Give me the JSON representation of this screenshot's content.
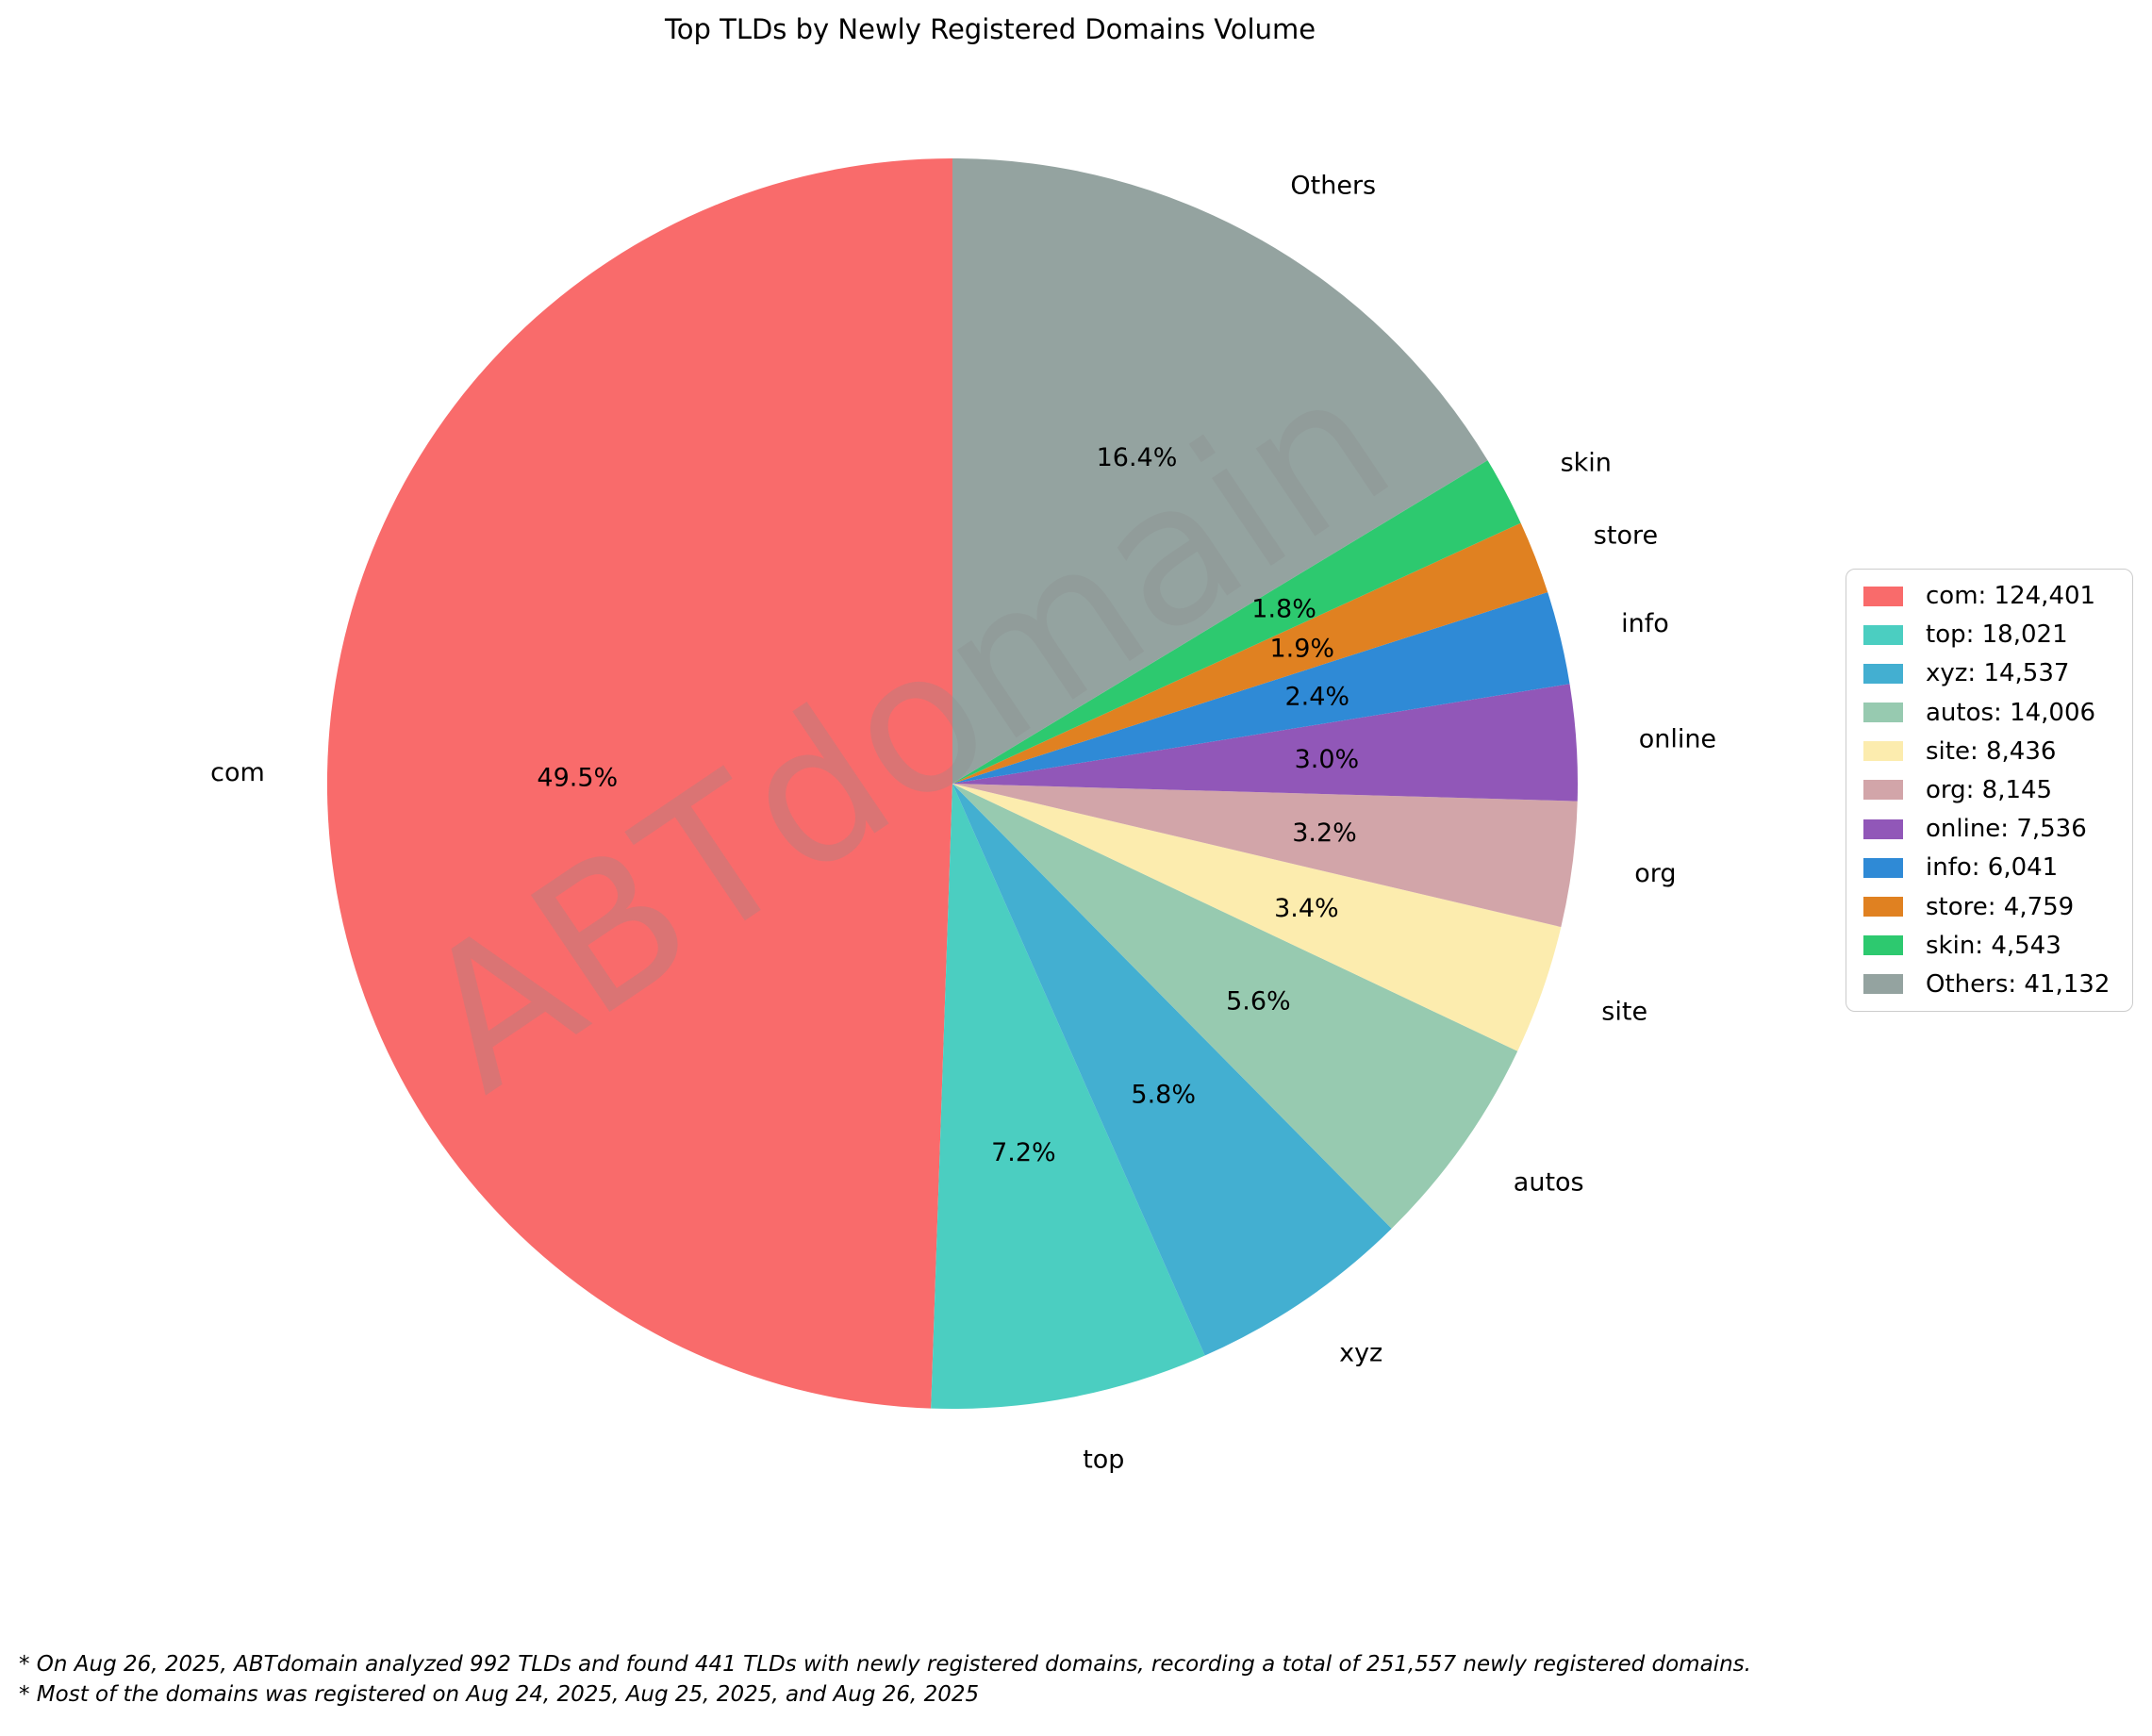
{
  "title": "Top TLDs by Newly Registered Domains Volume",
  "watermark": "ABTdomain",
  "footnotes": [
    "* On Aug 26, 2025, ABTdomain analyzed 992 TLDs and found 441 TLDs with newly registered domains, recording a total of 251,557 newly registered domains.",
    "* Most of the domains was registered on Aug 24, 2025, Aug 25, 2025, and Aug 26, 2025"
  ],
  "chart_data": {
    "type": "pie",
    "title": "Top TLDs by Newly Registered Domains Volume",
    "total": 251557,
    "start_angle": 90,
    "counterclock": true,
    "legend_position": "right",
    "watermark_color": "#8c8c8c",
    "series": [
      {
        "label": "com",
        "value": 124401,
        "value_display": "124,401",
        "pct_label": "49.5%",
        "color": "#f96b6b"
      },
      {
        "label": "top",
        "value": 18021,
        "value_display": "18,021",
        "pct_label": "7.2%",
        "color": "#4bcec1"
      },
      {
        "label": "xyz",
        "value": 14537,
        "value_display": "14,537",
        "pct_label": "5.8%",
        "color": "#43afd1"
      },
      {
        "label": "autos",
        "value": 14006,
        "value_display": "14,006",
        "pct_label": "5.6%",
        "color": "#97cab0"
      },
      {
        "label": "site",
        "value": 8436,
        "value_display": "8,436",
        "pct_label": "3.4%",
        "color": "#fcecae"
      },
      {
        "label": "org",
        "value": 8145,
        "value_display": "8,145",
        "pct_label": "3.2%",
        "color": "#d2a5a9"
      },
      {
        "label": "online",
        "value": 7536,
        "value_display": "7,536",
        "pct_label": "3.0%",
        "color": "#9157b8"
      },
      {
        "label": "info",
        "value": 6041,
        "value_display": "6,041",
        "pct_label": "2.4%",
        "color": "#2f8ad6"
      },
      {
        "label": "store",
        "value": 4759,
        "value_display": "4,759",
        "pct_label": "1.9%",
        "color": "#e08121"
      },
      {
        "label": "skin",
        "value": 4543,
        "value_display": "4,543",
        "pct_label": "1.8%",
        "color": "#2dc96f"
      },
      {
        "label": "Others",
        "value": 41132,
        "value_display": "41,132",
        "pct_label": "16.4%",
        "color": "#94a3a0"
      }
    ],
    "layout": {
      "center_x": 1010,
      "center_y": 831,
      "radius": 663,
      "label_distance": 1.1,
      "pct_distance": 0.6,
      "watermark_x": 960,
      "watermark_y": 775,
      "watermark_rotation": -34,
      "watermark_font_size": 205,
      "watermark_opacity": 0.28
    }
  }
}
